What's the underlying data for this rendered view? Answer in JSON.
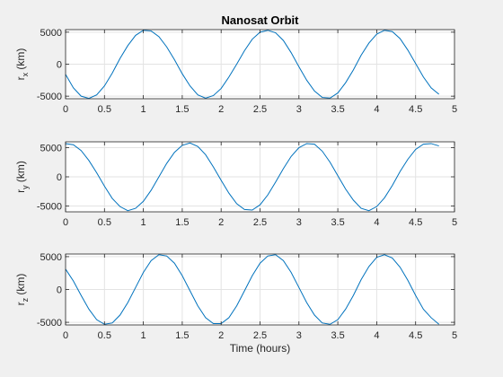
{
  "chart_data": [
    {
      "type": "line",
      "title": "Nanosat Orbit",
      "xlabel": "",
      "ylabel_main": "r",
      "ylabel_sub": "x",
      "ylabel_unit": " (km)",
      "xlim": [
        0,
        5
      ],
      "ylim": [
        -5400,
        5400
      ],
      "xticks": [
        0,
        0.5,
        1,
        1.5,
        2,
        2.5,
        3,
        3.5,
        4,
        4.5,
        5
      ],
      "xtick_labels": [
        "0",
        "0.5",
        "1",
        "1.5",
        "2",
        "2.5",
        "3",
        "3.5",
        "4",
        "4.5",
        "5"
      ],
      "yticks": [
        -5000,
        0,
        5000
      ],
      "ytick_labels": [
        "-5000",
        "0",
        "5000"
      ],
      "grid": true,
      "line_color": "#0072BD",
      "series": [
        {
          "x": [
            0,
            0.1,
            0.2,
            0.3,
            0.4,
            0.5,
            0.6,
            0.7,
            0.8,
            0.9,
            1.0,
            1.1,
            1.2,
            1.3,
            1.4,
            1.5,
            1.6,
            1.7,
            1.8,
            1.9,
            2.0,
            2.1,
            2.2,
            2.3,
            2.4,
            2.5,
            2.6,
            2.7,
            2.8,
            2.9,
            3.0,
            3.1,
            3.2,
            3.3,
            3.4,
            3.5,
            3.6,
            3.7,
            3.8,
            3.9,
            4.0,
            4.1,
            4.2,
            4.3,
            4.4,
            4.5,
            4.6,
            4.7,
            4.8
          ],
          "values": [
            -1600,
            -3700,
            -5000,
            -5350,
            -4800,
            -3400,
            -1400,
            900,
            2900,
            4500,
            5300,
            5200,
            4300,
            2700,
            700,
            -1500,
            -3400,
            -4800,
            -5300,
            -4900,
            -3800,
            -2000,
            0,
            2100,
            3900,
            5000,
            5300,
            4900,
            3700,
            1800,
            -400,
            -2500,
            -4200,
            -5200,
            -5300,
            -4500,
            -2900,
            -900,
            1400,
            3300,
            4700,
            5300,
            5100,
            4000,
            2200,
            100,
            -2000,
            -3700,
            -4700
          ]
        }
      ]
    },
    {
      "type": "line",
      "title": "",
      "xlabel": "",
      "ylabel_main": "r",
      "ylabel_sub": "y",
      "ylabel_unit": " (km)",
      "xlim": [
        0,
        5
      ],
      "ylim": [
        -6000,
        6000
      ],
      "xticks": [
        0,
        0.5,
        1,
        1.5,
        2,
        2.5,
        3,
        3.5,
        4,
        4.5,
        5
      ],
      "xtick_labels": [
        "0",
        "0.5",
        "1",
        "1.5",
        "2",
        "2.5",
        "3",
        "3.5",
        "4",
        "4.5",
        "5"
      ],
      "yticks": [
        -5000,
        0,
        5000
      ],
      "ytick_labels": [
        "-5000",
        "0",
        "5000"
      ],
      "grid": true,
      "line_color": "#0072BD",
      "series": [
        {
          "x": [
            0,
            0.1,
            0.2,
            0.3,
            0.4,
            0.5,
            0.6,
            0.7,
            0.8,
            0.9,
            1.0,
            1.1,
            1.2,
            1.3,
            1.4,
            1.5,
            1.6,
            1.7,
            1.8,
            1.9,
            2.0,
            2.1,
            2.2,
            2.3,
            2.4,
            2.5,
            2.6,
            2.7,
            2.8,
            2.9,
            3.0,
            3.1,
            3.2,
            3.3,
            3.4,
            3.5,
            3.6,
            3.7,
            3.8,
            3.9,
            4.0,
            4.1,
            4.2,
            4.3,
            4.4,
            4.5,
            4.6,
            4.7,
            4.8
          ],
          "values": [
            5700,
            5500,
            4500,
            2800,
            700,
            -1600,
            -3700,
            -5100,
            -5800,
            -5400,
            -4200,
            -2300,
            0,
            2300,
            4200,
            5400,
            5800,
            5200,
            3800,
            1700,
            -600,
            -2800,
            -4600,
            -5600,
            -5700,
            -4800,
            -3100,
            -900,
            1400,
            3500,
            5000,
            5700,
            5600,
            4400,
            2500,
            200,
            -2100,
            -4000,
            -5400,
            -5800,
            -5100,
            -3600,
            -1500,
            900,
            3000,
            4700,
            5600,
            5700,
            5300
          ]
        }
      ]
    },
    {
      "type": "line",
      "title": "",
      "xlabel": "Time (hours)",
      "ylabel_main": "r",
      "ylabel_sub": "z",
      "ylabel_unit": " (km)",
      "xlim": [
        0,
        5
      ],
      "ylim": [
        -5400,
        5400
      ],
      "xticks": [
        0,
        0.5,
        1,
        1.5,
        2,
        2.5,
        3,
        3.5,
        4,
        4.5,
        5
      ],
      "xtick_labels": [
        "0",
        "0.5",
        "1",
        "1.5",
        "2",
        "2.5",
        "3",
        "3.5",
        "4",
        "4.5",
        "5"
      ],
      "yticks": [
        -5000,
        0,
        5000
      ],
      "ytick_labels": [
        "-5000",
        "0",
        "5000"
      ],
      "grid": true,
      "line_color": "#0072BD",
      "series": [
        {
          "x": [
            0,
            0.1,
            0.2,
            0.3,
            0.4,
            0.5,
            0.6,
            0.7,
            0.8,
            0.9,
            1.0,
            1.1,
            1.2,
            1.3,
            1.4,
            1.5,
            1.6,
            1.7,
            1.8,
            1.9,
            2.0,
            2.1,
            2.2,
            2.3,
            2.4,
            2.5,
            2.6,
            2.7,
            2.8,
            2.9,
            3.0,
            3.1,
            3.2,
            3.3,
            3.4,
            3.5,
            3.6,
            3.7,
            3.8,
            3.9,
            4.0,
            4.1,
            4.2,
            4.3,
            4.4,
            4.5,
            4.6,
            4.7,
            4.8
          ],
          "values": [
            3100,
            1300,
            -900,
            -3000,
            -4600,
            -5300,
            -5100,
            -3900,
            -2000,
            300,
            2600,
            4400,
            5300,
            5100,
            4000,
            2100,
            -200,
            -2500,
            -4300,
            -5200,
            -5200,
            -4300,
            -2500,
            -200,
            2100,
            4000,
            5100,
            5300,
            4400,
            2600,
            300,
            -2000,
            -3900,
            -5100,
            -5300,
            -4600,
            -3000,
            -900,
            1500,
            3500,
            4900,
            5300,
            4800,
            3400,
            1400,
            -900,
            -3000,
            -4300,
            -5300
          ]
        }
      ]
    }
  ]
}
